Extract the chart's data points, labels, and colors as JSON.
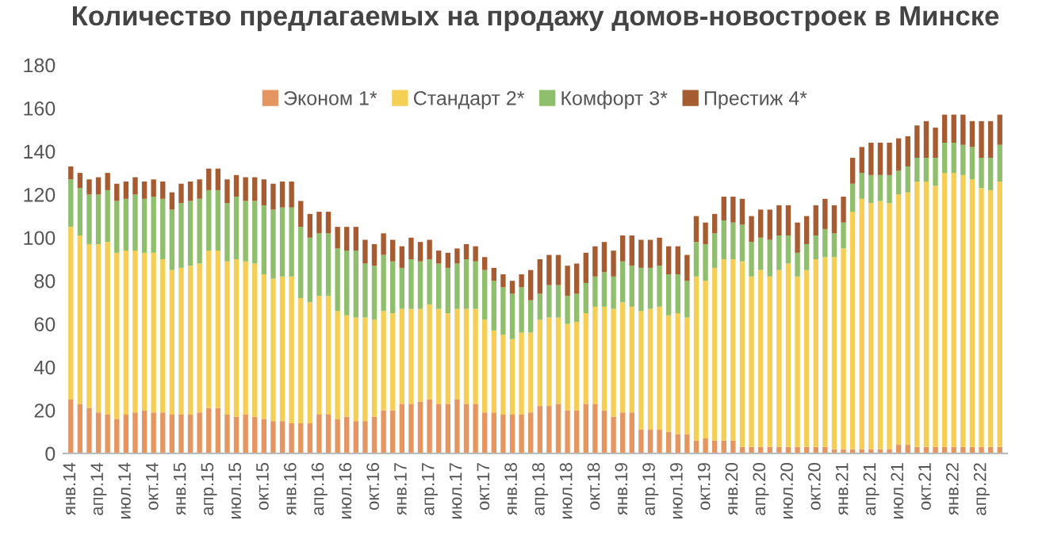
{
  "chart_data": {
    "type": "bar",
    "stacked": true,
    "title": "Количество предлагаемых на продажу домов-новостроек в Минске",
    "categories": [
      "янв.14",
      null,
      null,
      "апр.14",
      null,
      null,
      "июл.14",
      null,
      null,
      "окт.14",
      null,
      null,
      "янв.15",
      null,
      null,
      "апр.15",
      null,
      null,
      "июл.15",
      null,
      null,
      "окт.15",
      null,
      null,
      "янв.16",
      null,
      null,
      "апр.16",
      null,
      null,
      "июл.16",
      null,
      null,
      "окт.16",
      null,
      null,
      "янв.17",
      null,
      null,
      "апр.17",
      null,
      null,
      "июл.17",
      null,
      null,
      "окт.17",
      null,
      null,
      "янв.18",
      null,
      null,
      "апр.18",
      null,
      null,
      "июл.18",
      null,
      null,
      "окт.18",
      null,
      null,
      "янв.19",
      null,
      null,
      "апр.19",
      null,
      null,
      "июл.19",
      null,
      null,
      "окт.19",
      null,
      null,
      "янв.20",
      null,
      null,
      "апр.20",
      null,
      null,
      "июл.20",
      null,
      null,
      "окт.20",
      null,
      null,
      "янв.21",
      null,
      null,
      "апр.21",
      null,
      null,
      "июл.21",
      null,
      null,
      "окт.21",
      null,
      null,
      "янв.22",
      null,
      null,
      "апр.22",
      null,
      null
    ],
    "series": [
      {
        "name": "Эконом 1*",
        "color": "#e59560",
        "values": [
          25,
          23,
          21,
          19,
          18,
          16,
          18,
          19,
          20,
          19,
          19,
          18,
          18,
          18,
          19,
          21,
          21,
          18,
          17,
          18,
          17,
          16,
          15,
          15,
          14,
          14,
          14,
          18,
          18,
          16,
          17,
          15,
          15,
          17,
          20,
          20,
          23,
          23,
          24,
          25,
          23,
          23,
          25,
          23,
          23,
          19,
          19,
          18,
          18,
          18,
          19,
          22,
          22,
          23,
          20,
          20,
          23,
          23,
          20,
          17,
          19,
          19,
          11,
          11,
          11,
          10,
          9,
          9,
          6,
          7,
          6,
          6,
          6,
          3,
          3,
          3,
          3,
          3,
          3,
          3,
          3,
          3,
          3,
          2,
          2,
          2,
          2,
          2,
          2,
          2,
          4,
          4,
          3,
          3,
          3,
          3,
          3,
          3,
          3,
          3,
          3,
          3
        ]
      },
      {
        "name": "Стандарт 2*",
        "color": "#f5cf55",
        "values": [
          80,
          78,
          76,
          78,
          80,
          77,
          76,
          75,
          73,
          74,
          71,
          67,
          68,
          69,
          69,
          73,
          73,
          71,
          73,
          71,
          71,
          67,
          66,
          67,
          68,
          58,
          56,
          55,
          55,
          50,
          47,
          48,
          48,
          45,
          46,
          45,
          44,
          44,
          43,
          44,
          44,
          42,
          42,
          44,
          44,
          43,
          38,
          37,
          35,
          38,
          37,
          40,
          41,
          40,
          40,
          41,
          42,
          45,
          48,
          50,
          51,
          49,
          55,
          56,
          57,
          54,
          56,
          54,
          76,
          73,
          80,
          84,
          84,
          86,
          79,
          82,
          79,
          82,
          85,
          79,
          82,
          87,
          88,
          89,
          93,
          110,
          116,
          114,
          115,
          114,
          116,
          117,
          123,
          123,
          121,
          127,
          127,
          126,
          124,
          120,
          119,
          123
        ]
      },
      {
        "name": "Комфорт 3*",
        "color": "#8fbe6c",
        "values": [
          22,
          22,
          23,
          23,
          24,
          24,
          24,
          26,
          25,
          26,
          28,
          28,
          30,
          30,
          30,
          28,
          28,
          27,
          29,
          28,
          29,
          32,
          32,
          32,
          32,
          33,
          30,
          29,
          29,
          29,
          30,
          31,
          25,
          25,
          26,
          24,
          19,
          23,
          22,
          21,
          21,
          21,
          21,
          23,
          22,
          23,
          23,
          22,
          21,
          21,
          15,
          12,
          15,
          15,
          13,
          13,
          14,
          14,
          16,
          15,
          19,
          19,
          20,
          19,
          19,
          19,
          18,
          17,
          16,
          17,
          16,
          18,
          17,
          17,
          16,
          15,
          17,
          16,
          13,
          11,
          12,
          11,
          13,
          11,
          12,
          13,
          12,
          13,
          12,
          13,
          11,
          12,
          11,
          11,
          13,
          14,
          14,
          14,
          15,
          14,
          15,
          17
        ]
      },
      {
        "name": "Престиж 4*",
        "color": "#a65b30",
        "values": [
          6,
          7,
          7,
          8,
          8,
          8,
          8,
          8,
          8,
          8,
          8,
          8,
          9,
          9,
          9,
          10,
          10,
          11,
          10,
          11,
          11,
          12,
          12,
          12,
          12,
          12,
          11,
          10,
          10,
          10,
          11,
          11,
          11,
          10,
          10,
          10,
          10,
          10,
          9,
          9,
          6,
          7,
          7,
          7,
          7,
          6,
          6,
          6,
          6,
          6,
          14,
          16,
          14,
          14,
          14,
          14,
          14,
          14,
          14,
          12,
          12,
          14,
          13,
          13,
          13,
          13,
          13,
          12,
          12,
          10,
          9,
          11,
          12,
          12,
          12,
          13,
          14,
          14,
          14,
          14,
          13,
          14,
          14,
          13,
          12,
          12,
          12,
          15,
          15,
          15,
          15,
          14,
          15,
          17,
          14,
          13,
          13,
          14,
          12,
          17,
          17,
          14
        ]
      }
    ],
    "ylim": [
      0,
      180
    ],
    "yticks": [
      0,
      20,
      40,
      60,
      80,
      100,
      120,
      140,
      160,
      180
    ],
    "grid": false,
    "legend": "top"
  }
}
